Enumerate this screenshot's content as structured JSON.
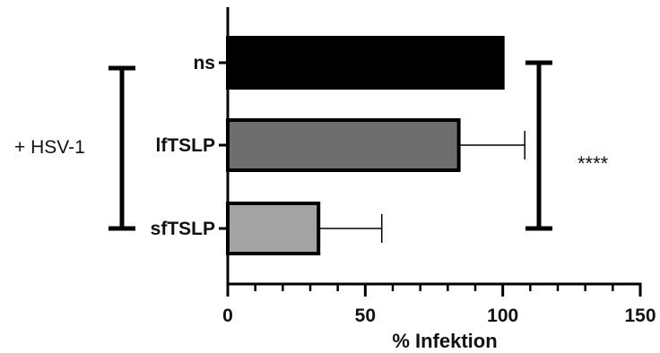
{
  "chart_data": {
    "type": "bar",
    "orientation": "horizontal",
    "categories": [
      "ns",
      "lfTSLP",
      "sfTSLP"
    ],
    "values": [
      100,
      84,
      33
    ],
    "error": [
      0,
      24,
      23
    ],
    "colors": [
      "#000000",
      "#6e6e6e",
      "#a3a3a3"
    ],
    "xlabel": "% Infektion",
    "xlim": [
      0,
      150
    ],
    "xticks": [
      0,
      50,
      100,
      150
    ],
    "minor_tick_step": 10,
    "group_label": "+ HSV-1",
    "significance": "****",
    "grid": false
  }
}
